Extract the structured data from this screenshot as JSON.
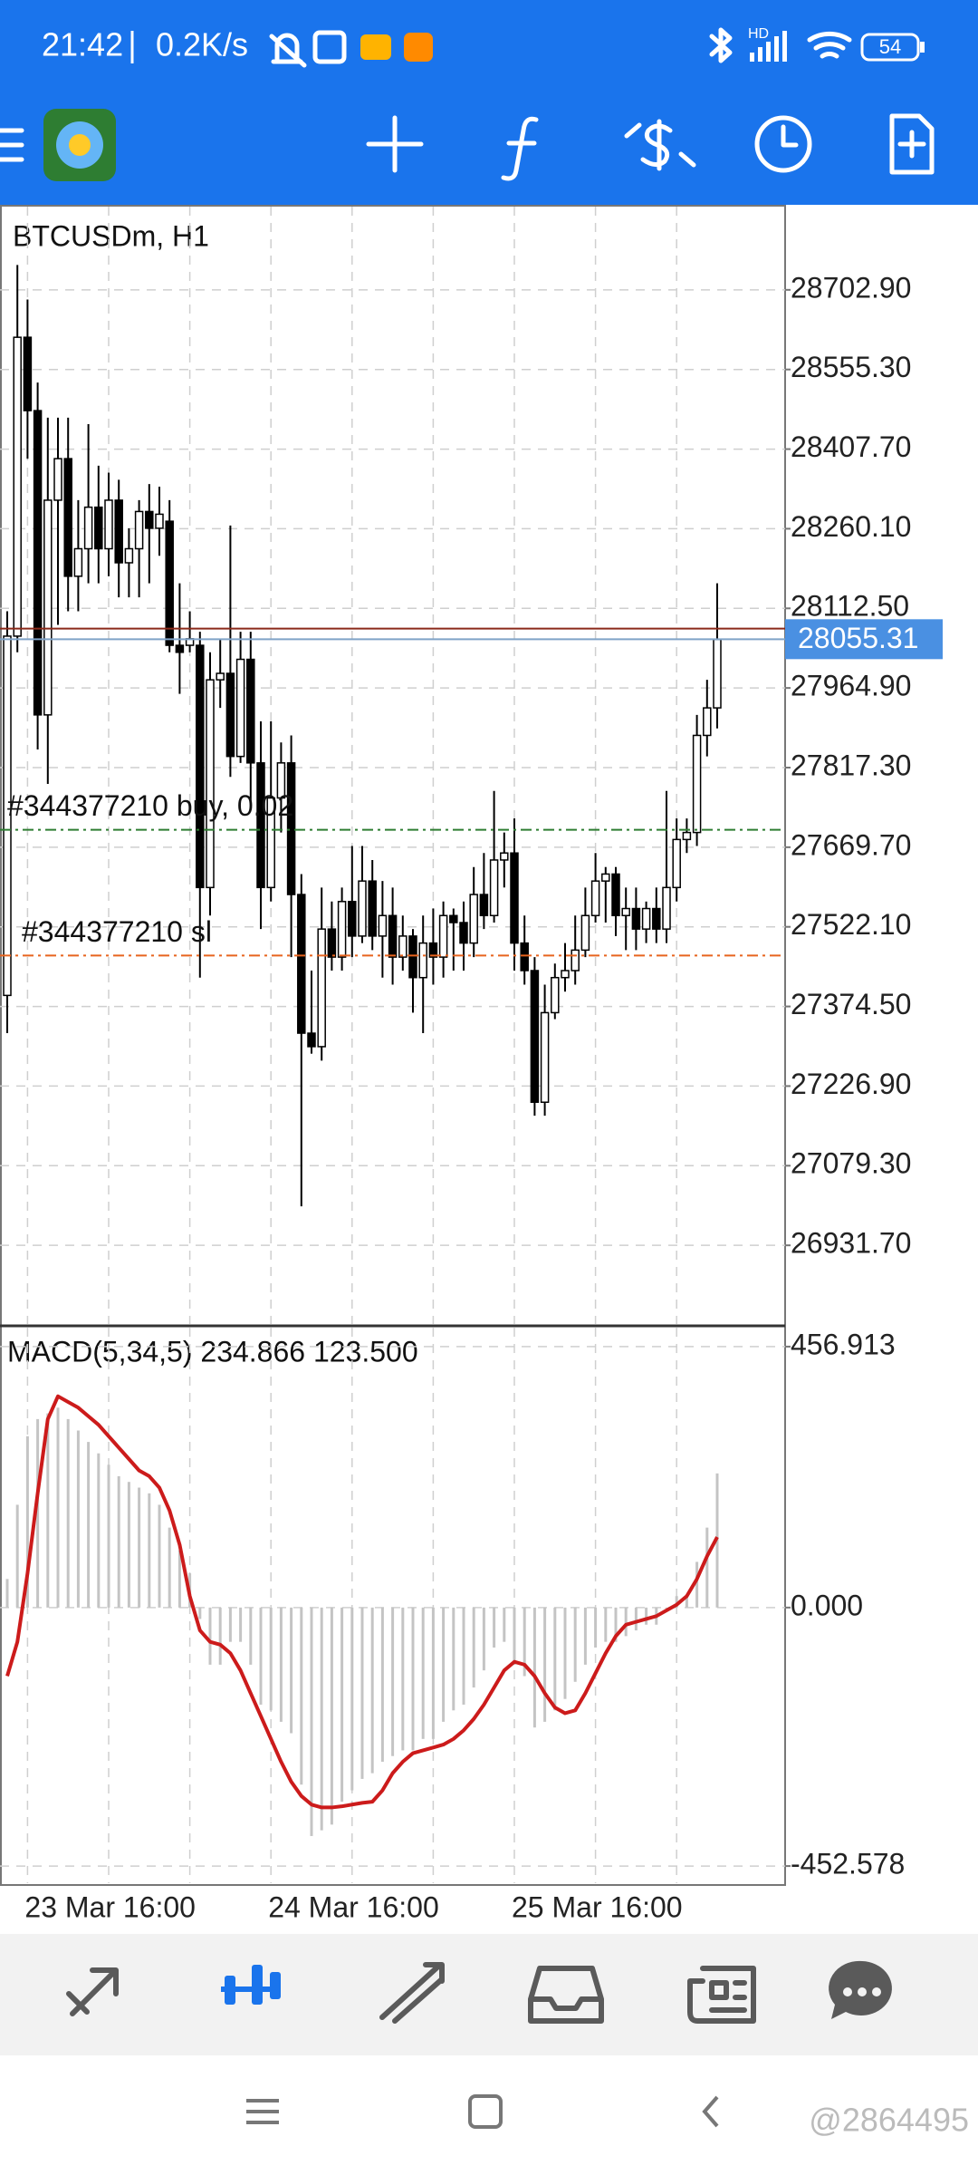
{
  "status_bar": {
    "time": "21:42",
    "speed": "0.2K/s",
    "network": "HD",
    "battery": "54"
  },
  "watermark": "@2864495",
  "chart_data": [
    {
      "type": "candlestick",
      "title": "BTCUSDm, H1",
      "categories": [
        null,
        null,
        "23 Mar 16:00",
        null,
        null,
        null,
        null,
        null,
        null,
        null,
        null,
        null,
        null,
        null,
        null,
        null,
        null,
        null,
        null,
        null,
        null,
        null,
        null,
        null,
        null,
        null,
        "24 Mar 16:00",
        null,
        null,
        null,
        null,
        null,
        null,
        null,
        null,
        null,
        null,
        null,
        null,
        null,
        null,
        null,
        null,
        null,
        null,
        null,
        null,
        null,
        null,
        null,
        "25 Mar 16:00",
        null,
        null,
        null,
        null,
        null,
        null,
        null,
        null,
        null,
        null,
        null,
        null,
        null,
        null,
        null,
        null,
        null,
        null,
        null,
        null
      ],
      "open": [
        27395,
        28061,
        28615,
        28479,
        27915,
        28313,
        28390,
        28172,
        28223,
        28300,
        28223,
        28313,
        28197,
        28223,
        28292,
        28261,
        28274,
        28044,
        28044,
        28044,
        27595,
        27980,
        27992,
        27838,
        28018,
        27826,
        27595,
        27761,
        27826,
        27582,
        27325,
        27300,
        27518,
        27466,
        27569,
        27505,
        27607,
        27505,
        27543,
        27466,
        27505,
        27428,
        27492,
        27466,
        27543,
        27530,
        27492,
        27582,
        27543,
        27646,
        27659,
        27492,
        27441,
        27197,
        27363,
        27428,
        27441,
        27479,
        27543,
        27607,
        27620,
        27543,
        27556,
        27518,
        27556,
        27518,
        27595,
        27684,
        27697,
        27877,
        27928
      ],
      "high": [
        28107,
        28749,
        28685,
        28531,
        28466,
        28466,
        28466,
        28313,
        28454,
        28377,
        28364,
        28351,
        28261,
        28313,
        28343,
        28338,
        28313,
        28159,
        28107,
        28069,
        28031,
        28056,
        28266,
        28069,
        28069,
        27903,
        27903,
        27864,
        27877,
        27620,
        27441,
        27595,
        27569,
        27595,
        27672,
        27672,
        27646,
        27607,
        27595,
        27543,
        27518,
        27543,
        27556,
        27569,
        27556,
        27569,
        27633,
        27659,
        27774,
        27697,
        27723,
        27543,
        27466,
        27415,
        27454,
        27492,
        27543,
        27595,
        27659,
        27633,
        27633,
        27595,
        27595,
        27569,
        27595,
        27774,
        27723,
        27723,
        27915,
        27980,
        28159
      ],
      "low": [
        27325,
        28031,
        28390,
        27851,
        27787,
        28082,
        28107,
        28107,
        28159,
        28159,
        28172,
        28133,
        28133,
        28133,
        28159,
        28210,
        28031,
        27954,
        28031,
        27428,
        27543,
        27928,
        27800,
        27826,
        27749,
        27518,
        27569,
        27697,
        27466,
        27004,
        27287,
        27274,
        27441,
        27441,
        27466,
        27492,
        27479,
        27428,
        27415,
        27441,
        27363,
        27325,
        27415,
        27428,
        27441,
        27441,
        27466,
        27518,
        27530,
        27595,
        27441,
        27415,
        27172,
        27172,
        27351,
        27402,
        27415,
        27466,
        27530,
        27530,
        27505,
        27479,
        27479,
        27492,
        27492,
        27492,
        27569,
        27659,
        27672,
        27838,
        27890
      ],
      "close": [
        28061,
        28615,
        28479,
        27915,
        28313,
        28390,
        28172,
        28223,
        28300,
        28223,
        28313,
        28197,
        28223,
        28292,
        28261,
        28287,
        28044,
        28031,
        28056,
        27595,
        27980,
        27992,
        27838,
        28018,
        27826,
        27595,
        27761,
        27826,
        27582,
        27325,
        27300,
        27518,
        27466,
        27569,
        27505,
        27607,
        27505,
        27543,
        27466,
        27505,
        27428,
        27492,
        27466,
        27543,
        27530,
        27492,
        27582,
        27543,
        27646,
        27659,
        27492,
        27441,
        27197,
        27363,
        27428,
        27441,
        27479,
        27543,
        27607,
        27620,
        27543,
        27556,
        27518,
        27556,
        27518,
        27595,
        27684,
        27697,
        27877,
        27928,
        28055
      ],
      "ylim": [
        26785.8,
        28857.2
      ],
      "yticks": [
        {
          "value": 28702.9,
          "label": "28702.90"
        },
        {
          "value": 28555.3,
          "label": "28555.30"
        },
        {
          "value": 28407.7,
          "label": "28407.70"
        },
        {
          "value": 28260.1,
          "label": "28260.10"
        },
        {
          "value": 28112.5,
          "label": "28112.50"
        },
        {
          "value": 27964.9,
          "label": "27964.90"
        },
        {
          "value": 27817.3,
          "label": "27817.30"
        },
        {
          "value": 27669.7,
          "label": "27669.70"
        },
        {
          "value": 27522.1,
          "label": "27522.10"
        },
        {
          "value": 27374.5,
          "label": "27374.50"
        },
        {
          "value": 27226.9,
          "label": "27226.90"
        },
        {
          "value": 27079.3,
          "label": "27079.30"
        },
        {
          "value": 26931.7,
          "label": "26931.70"
        }
      ],
      "grid": true,
      "up_color": "#ffffff",
      "down_color": "#000000",
      "bid": 28055.31,
      "bid_color": "#4a90e2",
      "ask": 28075,
      "ask_color": "#e0141e",
      "orders": [
        {
          "label": "#344377210 buy, 0.02",
          "price": 27702,
          "color": "#2e7d32"
        },
        {
          "label": "#344377210 sl",
          "price": 27469,
          "color": "#e8641e"
        }
      ]
    },
    {
      "type": "macd",
      "title": "MACD(5,34,5) 234.866 123.500",
      "series": [
        {
          "style": "bar",
          "color": "#c4c4c4",
          "values": [
            50,
            180,
            300,
            330,
            340,
            350,
            330,
            310,
            290,
            270,
            250,
            230,
            220,
            210,
            200,
            180,
            140,
            100,
            60,
            -20,
            -100,
            -100,
            -60,
            -60,
            -100,
            -170,
            -180,
            -200,
            -220,
            -310,
            -400,
            -390,
            -380,
            -340,
            -320,
            -300,
            -290,
            -270,
            -260,
            -250,
            -250,
            -230,
            -230,
            -200,
            -180,
            -170,
            -140,
            -110,
            -70,
            -60,
            -100,
            -120,
            -210,
            -200,
            -180,
            -160,
            -130,
            -100,
            -70,
            -60,
            -60,
            -50,
            -40,
            -30,
            -30,
            0,
            20,
            20,
            80,
            140,
            234.866
          ]
        },
        {
          "style": "line",
          "color": "#cc1b1b",
          "values": [
            -120,
            -60,
            60,
            200,
            330,
            370,
            360,
            350,
            335,
            320,
            300,
            280,
            260,
            240,
            230,
            210,
            170,
            110,
            20,
            -40,
            -60,
            -65,
            -80,
            -110,
            -150,
            -190,
            -230,
            -270,
            -305,
            -330,
            -345,
            -350,
            -350,
            -348,
            -345,
            -342,
            -340,
            -320,
            -290,
            -270,
            -255,
            -250,
            -245,
            -240,
            -230,
            -215,
            -195,
            -170,
            -140,
            -110,
            -95,
            -100,
            -120,
            -150,
            -175,
            -185,
            -180,
            -150,
            -115,
            -80,
            -50,
            -30,
            -25,
            -20,
            -15,
            -5,
            5,
            20,
            50,
            90,
            123.5
          ]
        }
      ],
      "ylim": [
        -482.6,
        490.1
      ],
      "yticks": [
        {
          "value": 456.913,
          "label": "456.913"
        },
        {
          "value": 0,
          "label": "0.000"
        },
        {
          "value": -452.578,
          "label": "-452.578"
        }
      ],
      "grid": true
    }
  ]
}
